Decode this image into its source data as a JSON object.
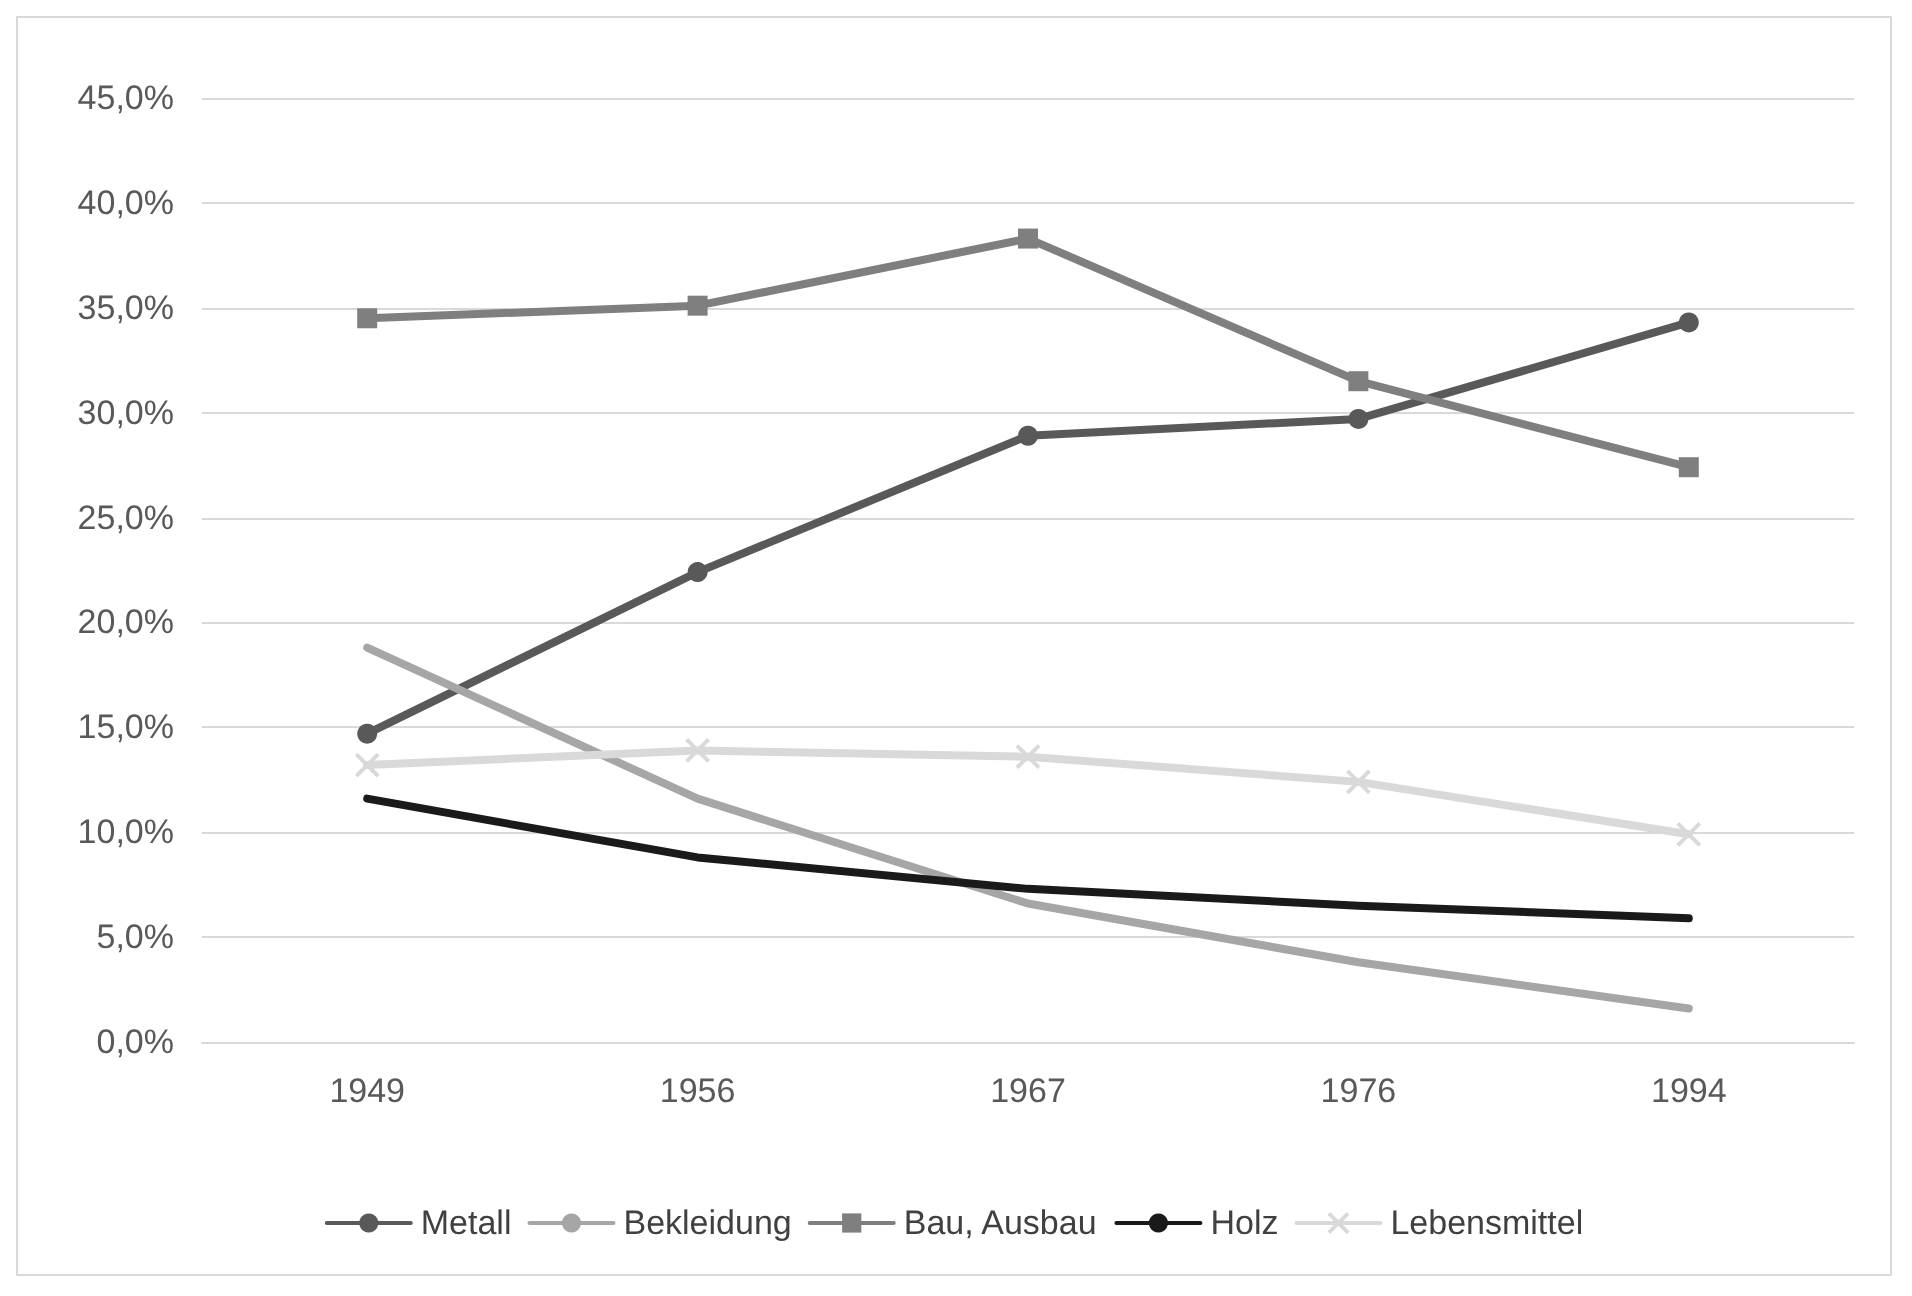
{
  "chart_data": {
    "type": "line",
    "categories": [
      "1949",
      "1956",
      "1967",
      "1976",
      "1994"
    ],
    "ylim": [
      0,
      45
    ],
    "yticks": [
      {
        "value": 0,
        "label": "0,0%"
      },
      {
        "value": 5,
        "label": "5,0%"
      },
      {
        "value": 10,
        "label": "10,0%"
      },
      {
        "value": 15,
        "label": "15,0%"
      },
      {
        "value": 20,
        "label": "20,0%"
      },
      {
        "value": 25,
        "label": "25,0%"
      },
      {
        "value": 30,
        "label": "30,0%"
      },
      {
        "value": 35,
        "label": "35,0%"
      },
      {
        "value": 40,
        "label": "40,0%"
      },
      {
        "value": 45,
        "label": "45,0%"
      }
    ],
    "grid": "y",
    "legend": "bottom",
    "line_style": "solid",
    "series": [
      {
        "name": "Metall",
        "color": "#595959",
        "marker": "circle",
        "values": [
          14.7,
          22.4,
          28.9,
          29.7,
          34.3
        ]
      },
      {
        "name": "Bekleidung",
        "color": "#a6a6a6",
        "marker": "none",
        "values": [
          18.8,
          11.6,
          6.6,
          3.8,
          1.6
        ]
      },
      {
        "name": "Bau, Ausbau",
        "color": "#7f7f7f",
        "marker": "square",
        "values": [
          34.5,
          35.1,
          38.3,
          31.5,
          27.4
        ]
      },
      {
        "name": "Holz",
        "color": "#1a1a1a",
        "marker": "none",
        "values": [
          11.6,
          8.8,
          7.3,
          6.5,
          5.9
        ]
      },
      {
        "name": "Lebensmittel",
        "color": "#d9d9d9",
        "marker": "cross",
        "values": [
          13.2,
          13.9,
          13.6,
          12.4,
          9.9
        ]
      }
    ]
  }
}
